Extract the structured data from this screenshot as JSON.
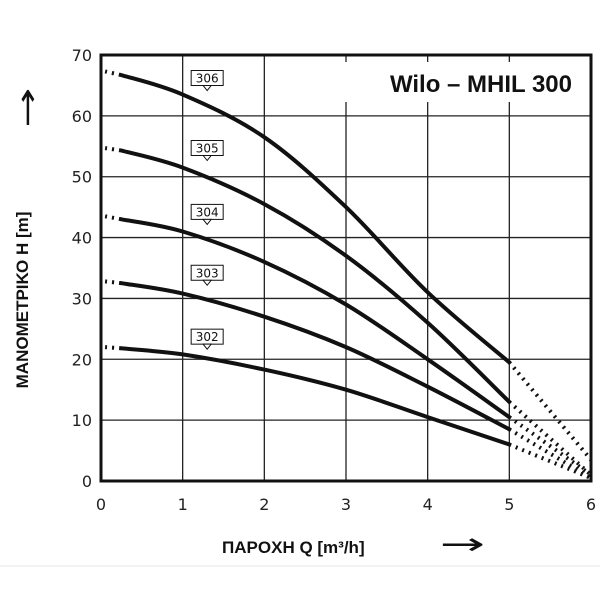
{
  "chart_data": {
    "type": "line",
    "title": "Wilo – MHIL 300",
    "xlabel": "ΠΑΡΟΧΗ Q [m³/h]",
    "ylabel": "ΜΑΝΟΜΕΤΡΙΚΟ Η [m]",
    "xlim": [
      0,
      6
    ],
    "ylim": [
      0,
      70
    ],
    "xticks": [
      "0",
      "1",
      "2",
      "3",
      "4",
      "5",
      "6"
    ],
    "yticks": [
      "0",
      "10",
      "20",
      "30",
      "40",
      "50",
      "60",
      "70"
    ],
    "grid": true,
    "series": [
      {
        "name": "306",
        "label_at": [
          1.3,
          64
        ],
        "solid": [
          [
            0.25,
            66.7
          ],
          [
            1,
            63.5
          ],
          [
            2,
            56.5
          ],
          [
            3,
            45
          ],
          [
            4,
            31
          ],
          [
            5,
            19.5
          ]
        ],
        "dotted": [
          [
            0.05,
            67.3
          ],
          [
            0.25,
            66.7
          ]
        ],
        "dotted_end": [
          [
            5,
            19.5
          ],
          [
            6,
            3.5
          ]
        ]
      },
      {
        "name": "305",
        "label_at": [
          1.3,
          52.5
        ],
        "solid": [
          [
            0.25,
            54.3
          ],
          [
            1,
            51.5
          ],
          [
            2,
            45.5
          ],
          [
            3,
            37
          ],
          [
            4,
            26
          ],
          [
            5,
            13
          ]
        ],
        "dotted": [
          [
            0.05,
            54.7
          ],
          [
            0.25,
            54.3
          ]
        ],
        "dotted_end": [
          [
            5,
            13
          ],
          [
            6,
            1
          ]
        ]
      },
      {
        "name": "304",
        "label_at": [
          1.3,
          42
        ],
        "solid": [
          [
            0.25,
            43
          ],
          [
            1,
            41
          ],
          [
            2,
            36
          ],
          [
            3,
            29
          ],
          [
            4,
            20
          ],
          [
            5,
            10.5
          ]
        ],
        "dotted": [
          [
            0.05,
            43.5
          ],
          [
            0.25,
            43
          ]
        ],
        "dotted_end": [
          [
            5,
            10.5
          ],
          [
            6,
            1
          ]
        ]
      },
      {
        "name": "303",
        "label_at": [
          1.3,
          32
        ],
        "solid": [
          [
            0.25,
            32.5
          ],
          [
            1,
            30.8
          ],
          [
            2,
            27
          ],
          [
            3,
            22
          ],
          [
            4,
            15.5
          ],
          [
            5,
            8.5
          ]
        ],
        "dotted": [
          [
            0.05,
            32.8
          ],
          [
            0.25,
            32.5
          ]
        ],
        "dotted_end": [
          [
            5,
            8.5
          ],
          [
            6,
            0.5
          ]
        ]
      },
      {
        "name": "302",
        "label_at": [
          1.3,
          21.5
        ],
        "solid": [
          [
            0.25,
            21.8
          ],
          [
            1,
            20.8
          ],
          [
            2,
            18.3
          ],
          [
            3,
            15
          ],
          [
            4,
            10.5
          ],
          [
            5,
            6
          ]
        ],
        "dotted": [
          [
            0.05,
            22
          ],
          [
            0.25,
            21.8
          ]
        ],
        "dotted_end": [
          [
            5,
            6
          ],
          [
            6,
            0.5
          ]
        ]
      }
    ]
  },
  "arrows": {
    "x_arrow": "→",
    "y_arrow": "↑"
  }
}
